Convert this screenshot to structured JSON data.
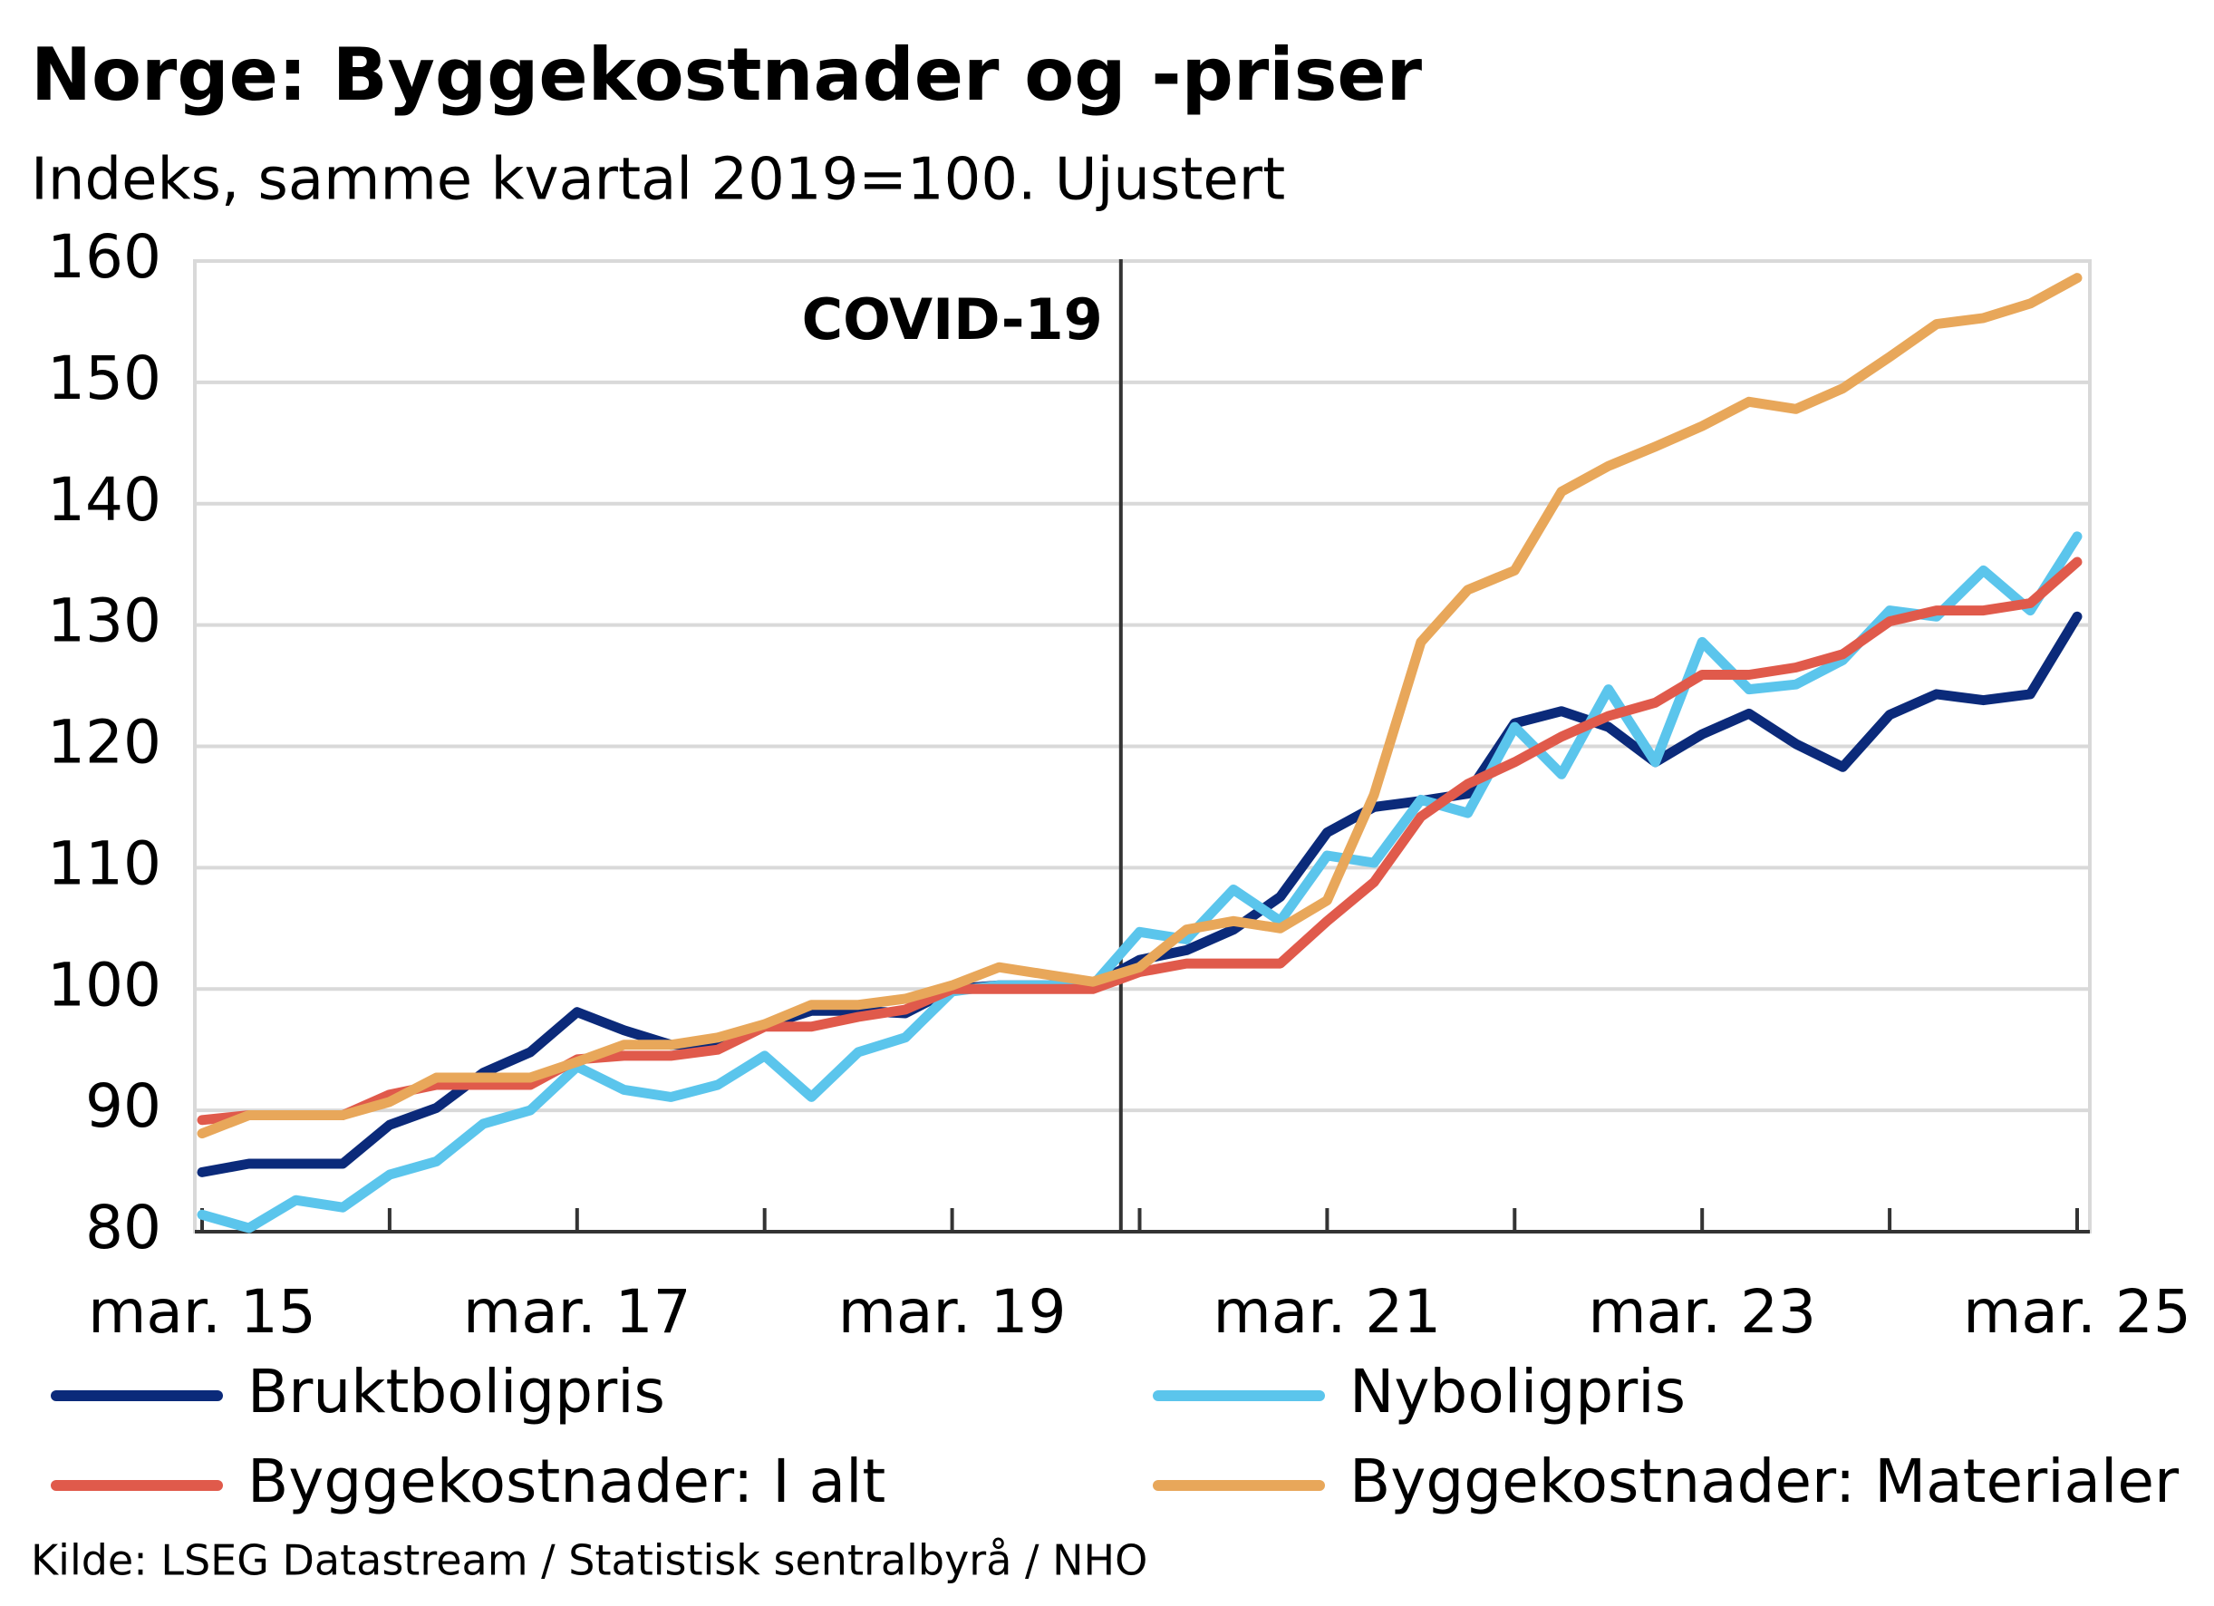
{
  "chart_data": {
    "type": "line",
    "title": "Norge:  Byggekostnader  og -priser",
    "subtitle": "Indeks, samme kvartal 2019=100. Ujustert",
    "source": "Kilde: LSEG Datastream / Statistisk sentralbyrå / NHO",
    "categories": [
      "mar. 15",
      null,
      null,
      null,
      null,
      null,
      null,
      null,
      "mar. 17",
      null,
      null,
      null,
      null,
      null,
      null,
      null,
      "mar. 19",
      null,
      null,
      null,
      null,
      null,
      null,
      null,
      "mar. 21",
      null,
      null,
      null,
      null,
      null,
      null,
      null,
      "mar. 23",
      null,
      null,
      null,
      null,
      null,
      null,
      null,
      "mar. 25"
    ],
    "ylim": [
      80,
      160
    ],
    "yticks": [
      80,
      90,
      100,
      110,
      120,
      130,
      140,
      150,
      160
    ],
    "grid": true,
    "legend": "bottom",
    "annotation": {
      "text": "COVID-19",
      "x": 19.6
    },
    "series": [
      {
        "name": "Bruktboligpris",
        "color": "#0b2a7a",
        "values": [
          84.9,
          85.6,
          85.6,
          85.6,
          88.8,
          90.2,
          93.1,
          94.8,
          98.1,
          96.6,
          95.4,
          95.4,
          97.0,
          98.2,
          98.2,
          98.0,
          100.0,
          100.3,
          100.3,
          100.3,
          102.4,
          103.2,
          104.9,
          107.6,
          112.9,
          115.0,
          115.5,
          116.1,
          121.9,
          122.9,
          121.6,
          118.7,
          121.0,
          122.7,
          120.2,
          118.3,
          122.6,
          124.3,
          123.8,
          124.3,
          130.7
        ]
      },
      {
        "name": "Nyboligpris",
        "color": "#5bc5ec",
        "values": [
          81.4,
          80.3,
          82.6,
          82.0,
          84.7,
          85.8,
          88.9,
          90.0,
          93.6,
          91.7,
          91.1,
          92.1,
          94.5,
          91.1,
          94.8,
          96.0,
          99.8,
          100.3,
          100.3,
          100.3,
          104.7,
          104.1,
          108.2,
          105.6,
          111.0,
          110.4,
          115.6,
          114.5,
          121.6,
          117.7,
          124.7,
          118.7,
          128.6,
          124.7,
          125.1,
          127.1,
          131.2,
          130.7,
          134.5,
          131.2,
          137.3
        ]
      },
      {
        "name": "Byggekostnader: I alt",
        "color": "#e05a4b",
        "values": [
          89.2,
          89.6,
          89.6,
          89.6,
          91.3,
          92.1,
          92.1,
          92.1,
          94.2,
          94.5,
          94.5,
          95.0,
          96.9,
          96.9,
          97.7,
          98.3,
          100.0,
          100.0,
          100.0,
          100.0,
          101.4,
          102.1,
          102.1,
          102.1,
          105.6,
          108.8,
          114.2,
          116.9,
          118.7,
          120.8,
          122.5,
          123.6,
          125.9,
          125.9,
          126.5,
          127.6,
          130.3,
          131.2,
          131.2,
          131.8,
          135.2
        ]
      },
      {
        "name": "Byggekostnader: Materialer",
        "color": "#e8a75a",
        "values": [
          88.1,
          89.6,
          89.6,
          89.6,
          90.7,
          92.7,
          92.7,
          92.7,
          94.0,
          95.4,
          95.4,
          96.0,
          97.1,
          98.7,
          98.7,
          99.2,
          100.3,
          101.8,
          101.2,
          100.6,
          101.8,
          104.9,
          105.6,
          105.0,
          107.3,
          116.0,
          128.6,
          132.9,
          134.5,
          141.0,
          143.1,
          144.7,
          146.4,
          148.4,
          147.8,
          149.5,
          152.1,
          154.8,
          155.3,
          156.5,
          158.6
        ]
      }
    ]
  }
}
